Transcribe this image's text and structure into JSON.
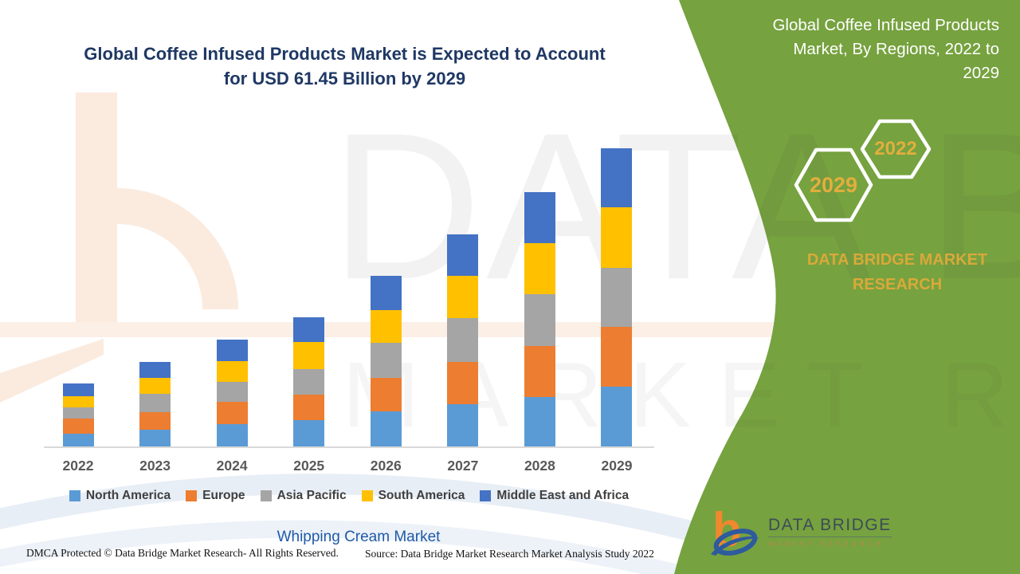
{
  "left_title": {
    "line1": "Global Coffee Infused Products Market is Expected to Account",
    "line2": "for USD 61.45 Billion by 2029"
  },
  "right_panel": {
    "title": "Global Coffee Infused Products Market, By Regions, 2022 to 2029",
    "hexagon_back_year": "2022",
    "hexagon_front_year": "2029",
    "brand_text": "DATA BRIDGE MARKET RESEARCH",
    "colors": {
      "panel_green": "#76A23F",
      "gold": "#D9A93A"
    }
  },
  "chart_data": {
    "type": "bar",
    "stacked": true,
    "title": "Global Coffee Infused Products Market, By Regions, 2022 to 2029",
    "unit": "USD Billion",
    "categories": [
      "2022",
      "2023",
      "2024",
      "2025",
      "2026",
      "2027",
      "2028",
      "2029"
    ],
    "series": [
      {
        "name": "North America",
        "color": "#5B9BD5",
        "values": [
          2.7,
          3.4,
          4.6,
          5.4,
          7.2,
          8.7,
          10.2,
          12.3
        ]
      },
      {
        "name": "Europe",
        "color": "#ED7D31",
        "values": [
          3.0,
          3.7,
          4.6,
          5.3,
          6.9,
          8.8,
          10.6,
          12.4
        ]
      },
      {
        "name": "Asia Pacific",
        "color": "#A5A5A5",
        "values": [
          2.3,
          3.7,
          4.2,
          5.3,
          7.3,
          8.9,
          10.6,
          12.2
        ]
      },
      {
        "name": "South America",
        "color": "#FFC000",
        "values": [
          2.3,
          3.4,
          4.2,
          5.5,
          6.7,
          8.8,
          10.6,
          12.4
        ]
      },
      {
        "name": "Middle East and Africa",
        "color": "#4472C4",
        "values": [
          2.7,
          3.3,
          4.5,
          5.2,
          7.1,
          8.6,
          10.5,
          12.2
        ]
      }
    ],
    "totals": [
      13.0,
      17.5,
      22.1,
      26.7,
      35.2,
      43.8,
      52.5,
      61.45
    ],
    "ylim": [
      0,
      62
    ],
    "gridlines": false,
    "y_axis_visible": false,
    "legend_position": "bottom"
  },
  "footer": {
    "market_label": "Whipping Cream Market",
    "dmca_text": "DMCA Protected © Data Bridge Market Research- All Rights Reserved.",
    "source_text": "Source: Data Bridge Market Research Market Analysis Study 2022",
    "logo_title": "DATA BRIDGE",
    "logo_subtitle": "MARKET RESEARCH"
  },
  "watermark": {
    "text_primary": "DATA BRIDGE",
    "text_secondary": "MARKET RESEARCH"
  }
}
